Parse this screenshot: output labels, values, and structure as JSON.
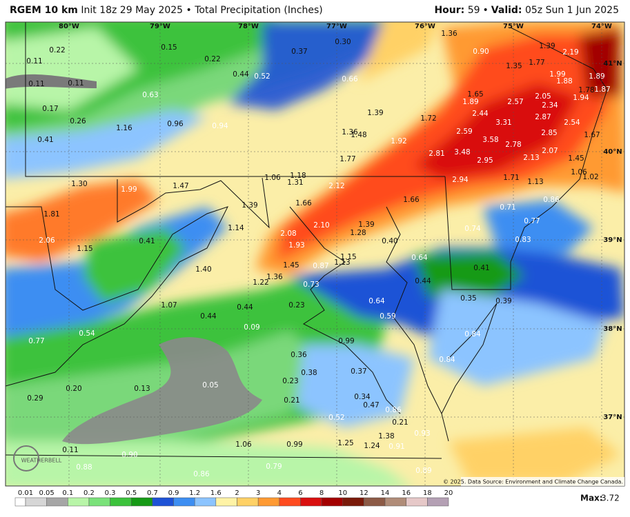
{
  "header": {
    "model": "RGEM 10 km",
    "description": "Init 18z 29 May 2025 • Total Precipitation (Inches)",
    "hour_label": "Hour:",
    "hour": "59",
    "separator": "•",
    "valid_label": "Valid:",
    "valid": "05z Sun 1 Jun 2025"
  },
  "map": {
    "longitudes": [
      "80°W",
      "79°W",
      "78°W",
      "77°W",
      "76°W",
      "75°W",
      "74°W"
    ],
    "latitudes": [
      "41°N",
      "40°N",
      "39°N",
      "38°N",
      "37°N"
    ],
    "points": [
      "0.22",
      "0.11",
      "0.11",
      "0.11",
      "0.17",
      "0.26",
      "0.41",
      "0.15",
      "0.22",
      "0.37",
      "0.30",
      "1.36",
      "0.90",
      "1.39",
      "2.19",
      "1.35",
      "1.77",
      "1.99",
      "1.89",
      "1.88",
      "1.78",
      "1.87",
      "1.94",
      "0.44",
      "0.52",
      "0.66",
      "0.63",
      "1.65",
      "2.57",
      "2.05",
      "2.34",
      "1.89",
      "2.44",
      "2.87",
      "2.54",
      "1.16",
      "0.96",
      "0.94",
      "1.39",
      "1.72",
      "3.31",
      "2.59",
      "2.85",
      "1.67",
      "1.36",
      "1.48",
      "1.92",
      "3.58",
      "2.78",
      "2.81",
      "3.48",
      "2.95",
      "2.07",
      "2.13",
      "1.45",
      "1.77",
      "1.06",
      "1.02",
      "1.06",
      "1.18",
      "1.31",
      "1.30",
      "1.99",
      "1.47",
      "2.12",
      "2.94",
      "1.71",
      "1.13",
      "1.66",
      "1.39",
      "1.66",
      "0.86",
      "0.71",
      "1.81",
      "1.14",
      "2.10",
      "1.39",
      "1.28",
      "0.77",
      "0.74",
      "2.06",
      "1.15",
      "0.41",
      "2.08",
      "1.93",
      "0.83",
      "0.40",
      "1.40",
      "1.45",
      "0.87",
      "1.13",
      "1.15",
      "0.64",
      "0.41",
      "1.22",
      "1.36",
      "0.73",
      "0.44",
      "1.07",
      "0.44",
      "0.23",
      "0.64",
      "0.35",
      "0.39",
      "0.44",
      "0.59",
      "0.09",
      "0.54",
      "0.77",
      "0.99",
      "0.84",
      "0.36",
      "0.84",
      "0.38",
      "0.37",
      "0.23",
      "0.05",
      "0.20",
      "0.13",
      "0.29",
      "0.21",
      "0.34",
      "0.47",
      "0.86",
      "0.52",
      "0.21",
      "0.93",
      "1.38",
      "1.25",
      "1.24",
      "0.91",
      "1.06",
      "0.99",
      "0.11",
      "0.90",
      "0.88",
      "0.79",
      "0.86",
      "0.89"
    ],
    "logo": "WEATHERBELL",
    "credit": "© 2025. Data Source: Environment and Climate Change Canada."
  },
  "colorbar": {
    "labels": [
      "0.01",
      "0.05",
      "0.1",
      "0.2",
      "0.3",
      "0.5",
      "0.7",
      "0.9",
      "1.2",
      "1.6",
      "2",
      "3",
      "4",
      "6",
      "8",
      "10",
      "12",
      "14",
      "16",
      "18",
      "20"
    ],
    "colors": [
      "#ffffff",
      "#d6d6d6",
      "#a6a6a6",
      "#b8f5a8",
      "#7ae27a",
      "#3cc23c",
      "#169a16",
      "#1e52d6",
      "#3d8ef2",
      "#8cc4ff",
      "#fff3a6",
      "#ffd166",
      "#ff9a33",
      "#ff4b1f",
      "#d90f0f",
      "#a30000",
      "#7a1a0a",
      "#8c5a46",
      "#b08c78",
      "#e6c8c8",
      "#b4a0b4",
      "#9664b4",
      "#8c3cb4",
      "#c81ec8"
    ]
  },
  "max": {
    "label": "Max:",
    "value": "3.72"
  }
}
